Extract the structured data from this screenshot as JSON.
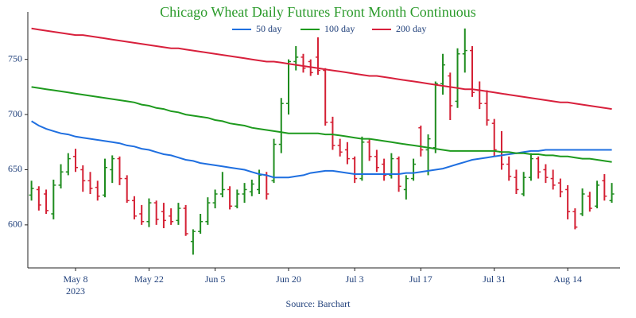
{
  "chart_data": {
    "type": "ohlc",
    "title": "Chicago Wheat Daily Futures Front Month Continuous",
    "source": "Source: Barchart",
    "x": [
      "2023-04-28",
      "2023-05-01",
      "2023-05-02",
      "2023-05-03",
      "2023-05-04",
      "2023-05-05",
      "2023-05-08",
      "2023-05-09",
      "2023-05-10",
      "2023-05-11",
      "2023-05-12",
      "2023-05-15",
      "2023-05-16",
      "2023-05-17",
      "2023-05-18",
      "2023-05-19",
      "2023-05-22",
      "2023-05-23",
      "2023-05-24",
      "2023-05-25",
      "2023-05-26",
      "2023-05-30",
      "2023-05-31",
      "2023-06-01",
      "2023-06-02",
      "2023-06-05",
      "2023-06-06",
      "2023-06-07",
      "2023-06-08",
      "2023-06-09",
      "2023-06-12",
      "2023-06-13",
      "2023-06-14",
      "2023-06-15",
      "2023-06-16",
      "2023-06-20",
      "2023-06-21",
      "2023-06-22",
      "2023-06-23",
      "2023-06-26",
      "2023-06-27",
      "2023-06-28",
      "2023-06-29",
      "2023-06-30",
      "2023-07-03",
      "2023-07-05",
      "2023-07-06",
      "2023-07-07",
      "2023-07-10",
      "2023-07-11",
      "2023-07-12",
      "2023-07-13",
      "2023-07-14",
      "2023-07-17",
      "2023-07-18",
      "2023-07-19",
      "2023-07-20",
      "2023-07-21",
      "2023-07-24",
      "2023-07-25",
      "2023-07-26",
      "2023-07-27",
      "2023-07-28",
      "2023-07-31",
      "2023-08-01",
      "2023-08-02",
      "2023-08-03",
      "2023-08-04",
      "2023-08-07",
      "2023-08-08",
      "2023-08-09",
      "2023-08-10",
      "2023-08-11",
      "2023-08-14",
      "2023-08-15",
      "2023-08-16",
      "2023-08-17",
      "2023-08-18",
      "2023-08-21",
      "2023-08-22"
    ],
    "open": [
      627,
      632,
      628,
      610,
      636,
      648,
      662,
      650,
      640,
      634,
      627,
      650,
      660,
      642,
      622,
      610,
      603,
      620,
      612,
      608,
      604,
      615,
      585,
      594,
      603,
      620,
      628,
      632,
      617,
      628,
      630,
      632,
      645,
      640,
      673,
      710,
      748,
      752,
      748,
      752,
      740,
      693,
      672,
      668,
      660,
      642,
      675,
      662,
      655,
      645,
      660,
      632,
      642,
      688,
      668,
      670,
      728,
      735,
      712,
      755,
      758,
      722,
      710,
      692,
      666,
      655,
      643,
      628,
      643,
      660,
      650,
      642,
      638,
      632,
      612,
      610,
      626,
      617,
      640,
      622
    ],
    "high": [
      640,
      635,
      632,
      641,
      655,
      665,
      669,
      654,
      648,
      640,
      660,
      663,
      662,
      645,
      626,
      618,
      624,
      622,
      620,
      615,
      620,
      618,
      596,
      610,
      625,
      632,
      648,
      635,
      632,
      638,
      641,
      650,
      648,
      678,
      715,
      750,
      762,
      755,
      750,
      770,
      742,
      698,
      678,
      675,
      662,
      680,
      678,
      668,
      660,
      665,
      662,
      645,
      660,
      690,
      682,
      730,
      755,
      738,
      760,
      778,
      762,
      730,
      722,
      696,
      685,
      662,
      650,
      648,
      665,
      662,
      655,
      650,
      642,
      636,
      615,
      633,
      630,
      640,
      646,
      638
    ],
    "low": [
      622,
      613,
      610,
      605,
      633,
      645,
      648,
      630,
      628,
      622,
      625,
      638,
      636,
      620,
      605,
      600,
      598,
      600,
      597,
      600,
      600,
      590,
      573,
      592,
      600,
      615,
      625,
      614,
      615,
      620,
      626,
      628,
      623,
      638,
      665,
      700,
      740,
      738,
      735,
      736,
      690,
      668,
      662,
      655,
      638,
      640,
      658,
      648,
      640,
      642,
      630,
      623,
      640,
      662,
      645,
      665,
      718,
      695,
      706,
      738,
      716,
      705,
      690,
      662,
      650,
      640,
      628,
      626,
      640,
      642,
      638,
      632,
      625,
      605,
      596,
      608,
      612,
      615,
      622,
      620
    ],
    "close": [
      633,
      618,
      613,
      636,
      648,
      660,
      652,
      640,
      633,
      626,
      652,
      660,
      642,
      622,
      608,
      603,
      620,
      605,
      604,
      603,
      615,
      592,
      594,
      603,
      620,
      628,
      632,
      617,
      628,
      632,
      637,
      645,
      628,
      673,
      710,
      748,
      752,
      742,
      738,
      740,
      693,
      672,
      666,
      660,
      642,
      675,
      662,
      652,
      645,
      660,
      635,
      642,
      655,
      668,
      678,
      728,
      745,
      708,
      755,
      758,
      720,
      710,
      695,
      668,
      655,
      644,
      632,
      643,
      660,
      648,
      643,
      636,
      630,
      612,
      598,
      628,
      615,
      636,
      626,
      628
    ],
    "up_color": "#1e8c1e",
    "down_color": "#d42034",
    "series": [
      {
        "name": "50 day",
        "color": "#1f6fe0",
        "values": [
          694,
          690,
          687,
          685,
          683,
          682,
          680,
          679,
          678,
          677,
          676,
          675,
          674,
          672,
          671,
          669,
          668,
          666,
          664,
          663,
          661,
          659,
          658,
          656,
          655,
          654,
          653,
          652,
          651,
          650,
          648,
          646,
          645,
          643,
          643,
          643,
          644,
          645,
          647,
          648,
          649,
          649,
          648,
          647,
          646,
          646,
          646,
          646,
          646,
          646,
          646,
          647,
          647,
          648,
          649,
          650,
          651,
          653,
          655,
          657,
          659,
          660,
          661,
          662,
          663,
          664,
          665,
          666,
          667,
          667,
          668,
          668,
          668,
          668,
          668,
          668,
          668,
          668,
          668,
          668
        ]
      },
      {
        "name": "100 day",
        "color": "#1e9a1e",
        "values": [
          725,
          724,
          723,
          722,
          721,
          720,
          719,
          718,
          717,
          716,
          715,
          714,
          713,
          712,
          711,
          709,
          708,
          706,
          705,
          703,
          702,
          700,
          699,
          698,
          697,
          695,
          694,
          692,
          691,
          690,
          688,
          687,
          686,
          685,
          684,
          683,
          683,
          683,
          683,
          683,
          682,
          682,
          681,
          680,
          679,
          678,
          678,
          677,
          676,
          675,
          674,
          673,
          672,
          671,
          670,
          669,
          668,
          667,
          667,
          667,
          667,
          667,
          667,
          667,
          666,
          666,
          665,
          665,
          664,
          664,
          663,
          663,
          662,
          662,
          661,
          660,
          660,
          659,
          658,
          657
        ]
      },
      {
        "name": "200 day",
        "color": "#d8203c",
        "values": [
          778,
          777,
          776,
          775,
          774,
          773,
          772,
          772,
          771,
          770,
          769,
          768,
          767,
          766,
          765,
          764,
          763,
          762,
          761,
          760,
          760,
          759,
          758,
          757,
          756,
          755,
          754,
          753,
          752,
          751,
          750,
          749,
          748,
          748,
          747,
          746,
          745,
          744,
          743,
          742,
          741,
          740,
          739,
          738,
          737,
          736,
          735,
          735,
          734,
          733,
          732,
          731,
          730,
          729,
          728,
          727,
          726,
          725,
          724,
          723,
          723,
          722,
          721,
          720,
          719,
          718,
          717,
          716,
          715,
          714,
          713,
          712,
          711,
          711,
          710,
          709,
          708,
          707,
          706,
          705
        ]
      }
    ],
    "xticks": [
      {
        "value": "2023-05-08",
        "label": "May 8"
      },
      {
        "value": "2023-05-22",
        "label": "May 22"
      },
      {
        "value": "2023-06-05",
        "label": "Jun 5"
      },
      {
        "value": "2023-06-20",
        "label": "Jun 20"
      },
      {
        "value": "2023-07-03",
        "label": "Jul 3"
      },
      {
        "value": "2023-07-17",
        "label": "Jul 17"
      },
      {
        "value": "2023-07-31",
        "label": "Jul 31"
      },
      {
        "value": "2023-08-14",
        "label": "Aug 14"
      }
    ],
    "x_year_label": "2023",
    "ylim": [
      561,
      793
    ],
    "yticks": [
      600,
      650,
      700,
      750
    ],
    "grid": false
  }
}
